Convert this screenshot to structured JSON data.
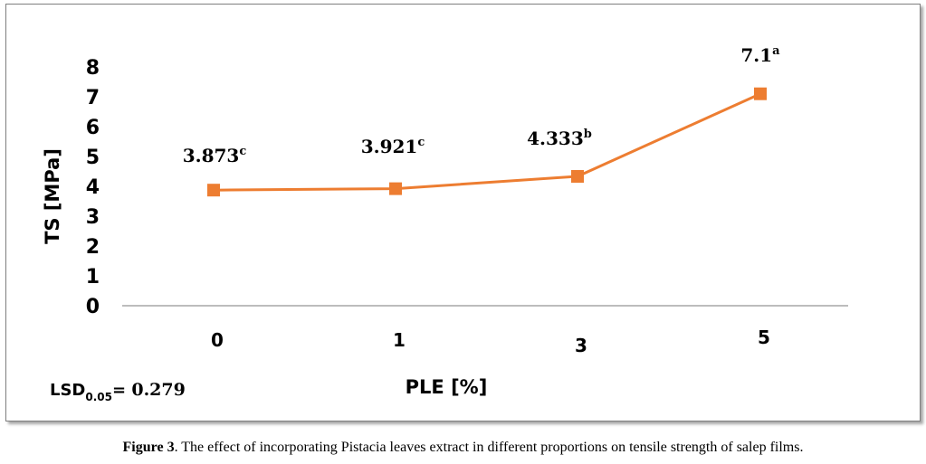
{
  "chart_data": {
    "type": "line",
    "categories": [
      "0",
      "1",
      "3",
      "5"
    ],
    "values": [
      3.873,
      3.921,
      4.333,
      7.1
    ],
    "data_labels": [
      {
        "value": "3.873",
        "letter": "c"
      },
      {
        "value": "3.921",
        "letter": "c"
      },
      {
        "value": "4.333",
        "letter": "b"
      },
      {
        "value": "7.1",
        "letter": "a"
      }
    ],
    "xlabel": "PLE [%]",
    "ylabel": "TS [MPa]",
    "ylim": [
      0,
      8
    ],
    "yticks": [
      "0",
      "1",
      "2",
      "3",
      "4",
      "5",
      "6",
      "7",
      "8"
    ],
    "grid": false,
    "series_color": "#ED7D31",
    "annotation": {
      "prefix": "LSD",
      "subscript": "0.05",
      "suffix": "= ",
      "value": "0.279"
    }
  },
  "caption": {
    "label": "Figure 3",
    "text": ". The effect of incorporating Pistacia leaves extract in different proportions on tensile strength of salep films."
  }
}
